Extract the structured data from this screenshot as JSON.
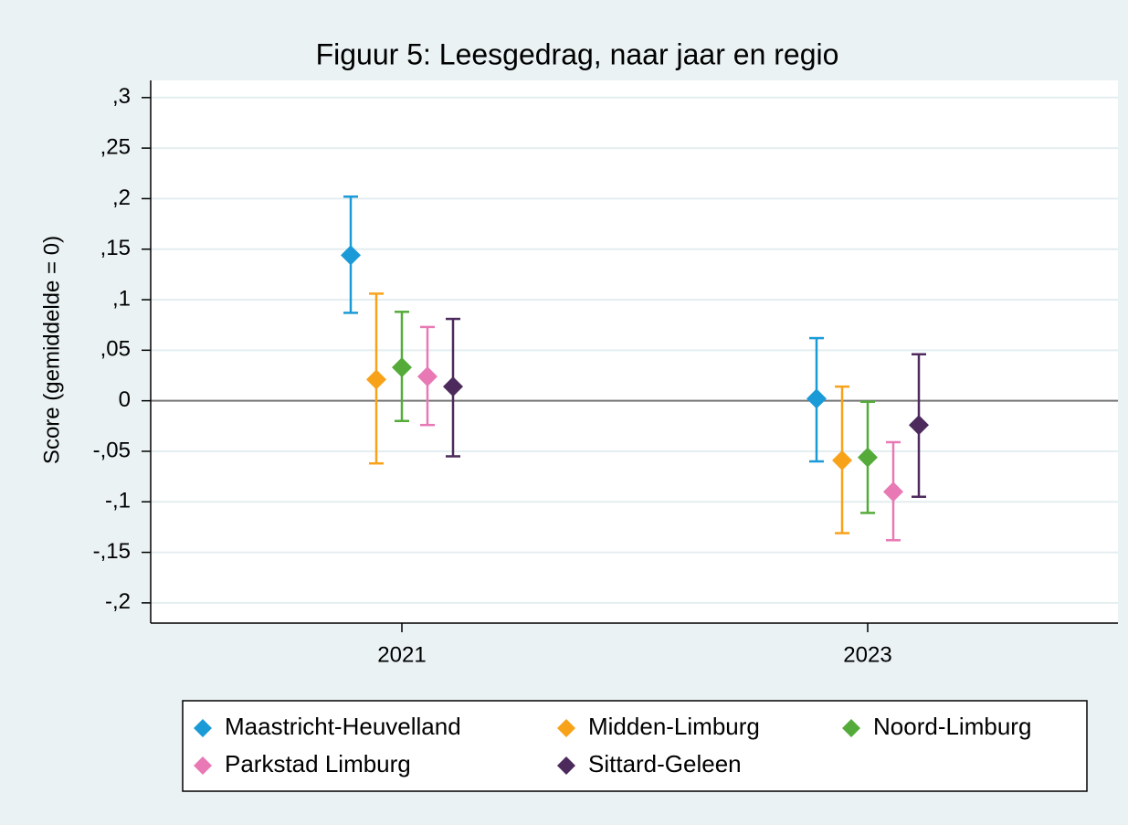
{
  "chart_data": {
    "type": "errorbar",
    "title": "Figuur 5: Leesgedrag, naar jaar en regio",
    "y_label": "Score (gemiddelde = 0)",
    "categories": [
      "2021",
      "2023"
    ],
    "ylim": [
      -0.22,
      0.317
    ],
    "yticks": [
      {
        "value": -0.2,
        "label": "-,2"
      },
      {
        "value": -0.15,
        "label": "-,15"
      },
      {
        "value": -0.1,
        "label": "-,1"
      },
      {
        "value": -0.05,
        "label": "-,05"
      },
      0,
      {
        "value": 0.05,
        "label": ",05"
      },
      {
        "value": 0.1,
        "label": ",1"
      },
      {
        "value": 0.15,
        "label": ",15"
      },
      {
        "value": 0.2,
        "label": ",2"
      },
      {
        "value": 0.25,
        "label": ",25"
      },
      {
        "value": 0.3,
        "label": ",3"
      }
    ],
    "grid": true,
    "yline": 0,
    "series": [
      {
        "name": "Maastricht-Heuvelland",
        "color": "#1a9bd7",
        "values": [
          0.144,
          0.002
        ],
        "lower": [
          0.087,
          -0.06
        ],
        "upper": [
          0.202,
          0.062
        ]
      },
      {
        "name": "Midden-Limburg",
        "color": "#f8a21a",
        "values": [
          0.021,
          -0.059
        ],
        "lower": [
          -0.062,
          -0.131
        ],
        "upper": [
          0.106,
          0.014
        ]
      },
      {
        "name": "Noord-Limburg",
        "color": "#55ab3a",
        "values": [
          0.033,
          -0.056
        ],
        "lower": [
          -0.02,
          -0.111
        ],
        "upper": [
          0.088,
          -0.001
        ]
      },
      {
        "name": "Parkstad Limburg",
        "color": "#e879b5",
        "values": [
          0.024,
          -0.09
        ],
        "lower": [
          -0.024,
          -0.138
        ],
        "upper": [
          0.073,
          -0.041
        ]
      },
      {
        "name": "Sittard-Geleen",
        "color": "#4c2a5c",
        "values": [
          0.014,
          -0.024
        ],
        "lower": [
          -0.055,
          -0.095
        ],
        "upper": [
          0.081,
          0.046
        ]
      }
    ]
  }
}
